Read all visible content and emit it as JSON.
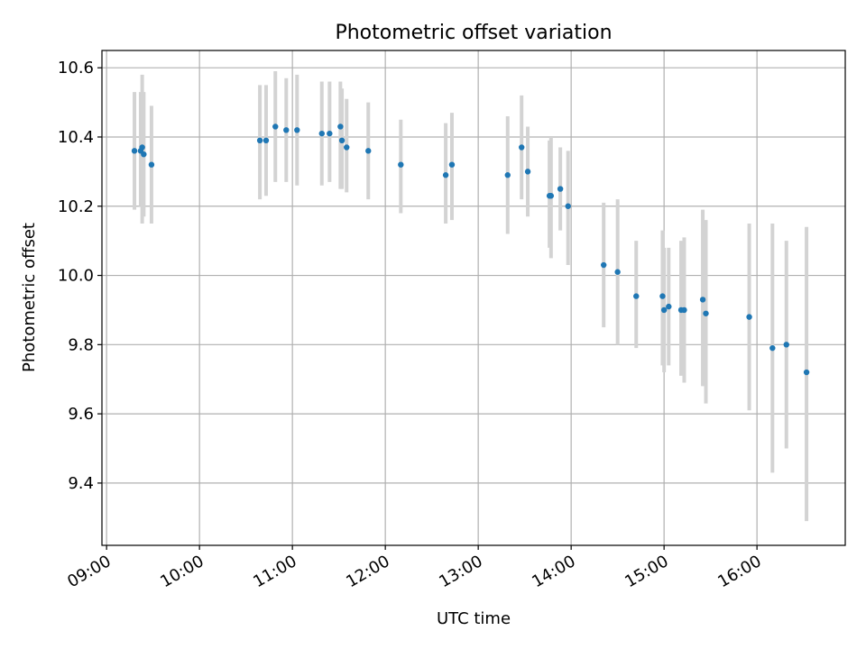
{
  "chart_data": {
    "type": "scatter",
    "title": "Photometric offset variation",
    "xlabel": "UTC time",
    "ylabel": "Photometric offset",
    "xlim": [
      "08:57",
      "16:57"
    ],
    "ylim": [
      9.22,
      10.65
    ],
    "xticks": [
      "09:00",
      "10:00",
      "11:00",
      "12:00",
      "13:00",
      "14:00",
      "15:00",
      "16:00"
    ],
    "yticks": [
      9.4,
      9.6,
      9.8,
      10.0,
      10.2,
      10.4,
      10.6
    ],
    "ytick_labels": [
      "9.4",
      "9.6",
      "9.8",
      "10.0",
      "10.2",
      "10.4",
      "10.6"
    ],
    "grid": true,
    "colors": {
      "point": "#1f77b4",
      "error_bar": "#d3d3d3",
      "grid": "#b0b0b0"
    },
    "points": [
      {
        "x": "09:18",
        "y": 10.36,
        "lo": 10.19,
        "hi": 10.53
      },
      {
        "x": "09:22",
        "y": 10.36,
        "lo": 10.2,
        "hi": 10.53
      },
      {
        "x": "09:23",
        "y": 10.37,
        "lo": 10.15,
        "hi": 10.58
      },
      {
        "x": "09:24",
        "y": 10.35,
        "lo": 10.17,
        "hi": 10.53
      },
      {
        "x": "09:29",
        "y": 10.32,
        "lo": 10.15,
        "hi": 10.49
      },
      {
        "x": "10:39",
        "y": 10.39,
        "lo": 10.22,
        "hi": 10.55
      },
      {
        "x": "10:43",
        "y": 10.39,
        "lo": 10.23,
        "hi": 10.55
      },
      {
        "x": "10:49",
        "y": 10.43,
        "lo": 10.27,
        "hi": 10.59
      },
      {
        "x": "10:56",
        "y": 10.42,
        "lo": 10.27,
        "hi": 10.57
      },
      {
        "x": "11:03",
        "y": 10.42,
        "lo": 10.26,
        "hi": 10.58
      },
      {
        "x": "11:19",
        "y": 10.41,
        "lo": 10.26,
        "hi": 10.56
      },
      {
        "x": "11:24",
        "y": 10.41,
        "lo": 10.27,
        "hi": 10.56
      },
      {
        "x": "11:31",
        "y": 10.43,
        "lo": 10.25,
        "hi": 10.56
      },
      {
        "x": "11:32",
        "y": 10.39,
        "lo": 10.25,
        "hi": 10.54
      },
      {
        "x": "11:35",
        "y": 10.37,
        "lo": 10.24,
        "hi": 10.51
      },
      {
        "x": "11:49",
        "y": 10.36,
        "lo": 10.22,
        "hi": 10.5
      },
      {
        "x": "12:10",
        "y": 10.32,
        "lo": 10.18,
        "hi": 10.45
      },
      {
        "x": "12:39",
        "y": 10.29,
        "lo": 10.15,
        "hi": 10.44
      },
      {
        "x": "12:43",
        "y": 10.32,
        "lo": 10.16,
        "hi": 10.47
      },
      {
        "x": "13:19",
        "y": 10.29,
        "lo": 10.12,
        "hi": 10.46
      },
      {
        "x": "13:28",
        "y": 10.37,
        "lo": 10.22,
        "hi": 10.52
      },
      {
        "x": "13:32",
        "y": 10.3,
        "lo": 10.17,
        "hi": 10.43
      },
      {
        "x": "13:46",
        "y": 10.23,
        "lo": 10.08,
        "hi": 10.39
      },
      {
        "x": "13:47",
        "y": 10.23,
        "lo": 10.05,
        "hi": 10.4
      },
      {
        "x": "13:53",
        "y": 10.25,
        "lo": 10.13,
        "hi": 10.37
      },
      {
        "x": "13:58",
        "y": 10.2,
        "lo": 10.03,
        "hi": 10.36
      },
      {
        "x": "14:21",
        "y": 10.03,
        "lo": 9.85,
        "hi": 10.21
      },
      {
        "x": "14:30",
        "y": 10.01,
        "lo": 9.8,
        "hi": 10.22
      },
      {
        "x": "14:42",
        "y": 9.94,
        "lo": 9.79,
        "hi": 10.1
      },
      {
        "x": "14:59",
        "y": 9.94,
        "lo": 9.74,
        "hi": 10.13
      },
      {
        "x": "15:00",
        "y": 9.9,
        "lo": 9.72,
        "hi": 10.08
      },
      {
        "x": "15:03",
        "y": 9.91,
        "lo": 9.74,
        "hi": 10.08
      },
      {
        "x": "15:11",
        "y": 9.9,
        "lo": 9.71,
        "hi": 10.1
      },
      {
        "x": "15:13",
        "y": 9.9,
        "lo": 9.69,
        "hi": 10.11
      },
      {
        "x": "15:25",
        "y": 9.93,
        "lo": 9.68,
        "hi": 10.19
      },
      {
        "x": "15:27",
        "y": 9.89,
        "lo": 9.63,
        "hi": 10.16
      },
      {
        "x": "15:55",
        "y": 9.88,
        "lo": 9.61,
        "hi": 10.15
      },
      {
        "x": "16:10",
        "y": 9.79,
        "lo": 9.43,
        "hi": 10.15
      },
      {
        "x": "16:19",
        "y": 9.8,
        "lo": 9.5,
        "hi": 10.1
      },
      {
        "x": "16:32",
        "y": 9.72,
        "lo": 9.29,
        "hi": 10.14
      }
    ]
  }
}
